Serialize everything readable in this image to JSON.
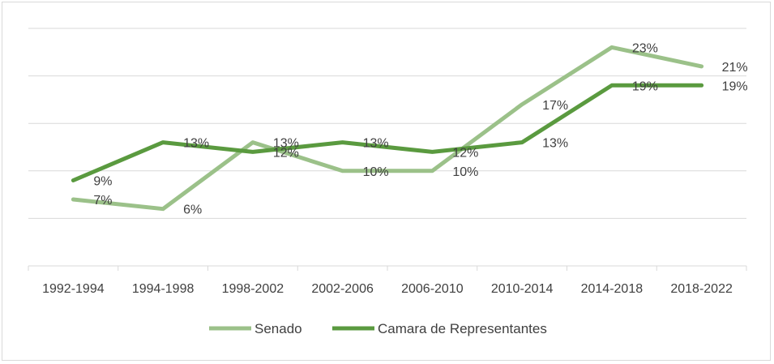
{
  "chart_data": {
    "type": "line",
    "categories": [
      "1992-1994",
      "1994-1998",
      "1998-2002",
      "2002-2006",
      "2006-2010",
      "2010-2014",
      "2014-2018",
      "2018-2022"
    ],
    "series": [
      {
        "name": "Senado",
        "values": [
          7,
          6,
          13,
          10,
          10,
          17,
          23,
          21
        ],
        "labels": [
          "7%",
          "6%",
          "13%",
          "10%",
          "10%",
          "17%",
          "23%",
          "21%"
        ],
        "color": "#9bc189"
      },
      {
        "name": "Camara de Representantes",
        "values": [
          9,
          13,
          12,
          13,
          12,
          13,
          19,
          19
        ],
        "labels": [
          "9%",
          "13%",
          "12%",
          "13%",
          "12%",
          "13%",
          "19%",
          "19%"
        ],
        "color": "#5a9a3f"
      }
    ],
    "title": "",
    "xlabel": "",
    "ylabel": "",
    "ylim": [
      0,
      25
    ],
    "grid": true,
    "legend_position": "bottom"
  }
}
